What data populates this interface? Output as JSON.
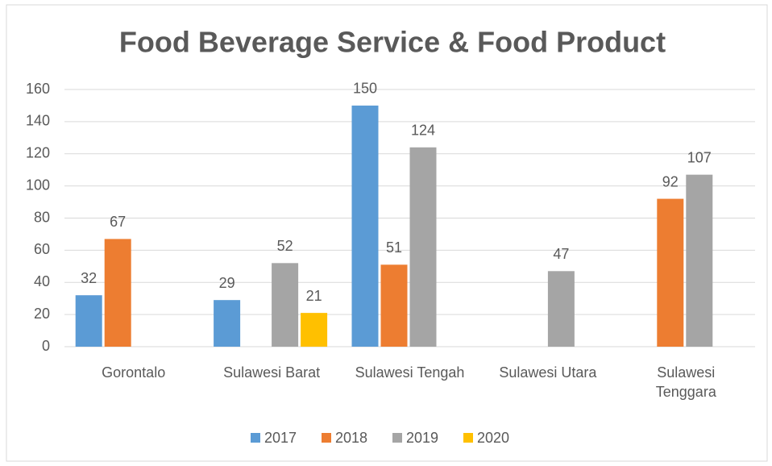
{
  "chart_data": {
    "type": "bar",
    "title": "Food Beverage Service & Food Product",
    "categories": [
      "Gorontalo",
      "Sulawesi Barat",
      "Sulawesi Tengah",
      "Sulawesi Utara",
      "Sulawesi Tenggara"
    ],
    "series": [
      {
        "name": "2017",
        "color": "#5b9bd5",
        "values": [
          32,
          29,
          150,
          null,
          null
        ]
      },
      {
        "name": "2018",
        "color": "#ed7d31",
        "values": [
          67,
          null,
          51,
          null,
          92
        ]
      },
      {
        "name": "2019",
        "color": "#a5a5a5",
        "values": [
          null,
          52,
          124,
          47,
          107
        ]
      },
      {
        "name": "2020",
        "color": "#ffc000",
        "values": [
          null,
          21,
          null,
          null,
          null
        ]
      }
    ],
    "ylim": [
      0,
      160
    ],
    "yticks": [
      0,
      20,
      40,
      60,
      80,
      100,
      120,
      140,
      160
    ],
    "grid": true,
    "legend": "bottom"
  }
}
